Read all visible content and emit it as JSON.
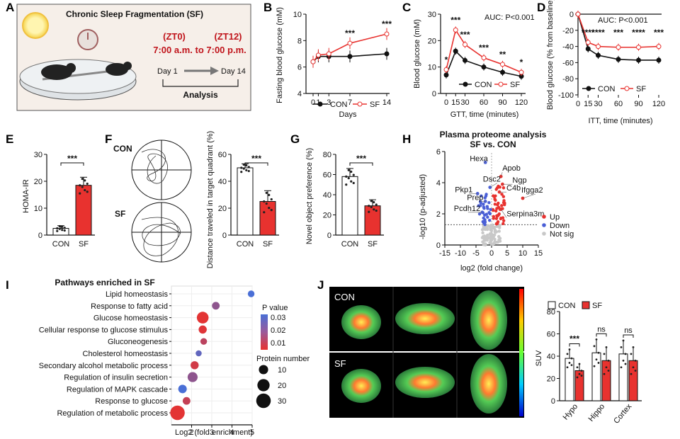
{
  "panel_labels": [
    "A",
    "B",
    "C",
    "D",
    "E",
    "F",
    "G",
    "H",
    "I",
    "J"
  ],
  "panelA": {
    "title": "Chronic Sleep Fragmentation (SF)",
    "zt0": "(ZT0)",
    "zt12": "(ZT12)",
    "time_range": "7:00 a.m.  to  7:00 p.m.",
    "day1": "Day 1",
    "day14": "Day 14",
    "analysis": "Analysis"
  },
  "legend": {
    "con": "CON",
    "sf": "SF"
  },
  "colors": {
    "con": "#111111",
    "sf": "#e8322f",
    "up": "#e8322f",
    "down": "#4a5fd6",
    "notsig": "#c8c8c8"
  },
  "chart_data": [
    {
      "id": "B",
      "type": "line",
      "ylabel": "Fasting blood glucose (mM)",
      "xlabel": "Days",
      "x": [
        0,
        1,
        3,
        7,
        14
      ],
      "ylim": [
        4,
        10
      ],
      "yticks": [
        4,
        6,
        8,
        10
      ],
      "series": [
        {
          "name": "CON",
          "values": [
            6.4,
            6.8,
            6.8,
            6.8,
            7.0
          ]
        },
        {
          "name": "SF",
          "values": [
            6.4,
            6.9,
            7.0,
            7.8,
            8.5
          ]
        }
      ],
      "sig": [
        {
          "x": 7,
          "text": "***"
        },
        {
          "x": 14,
          "text": "***"
        }
      ]
    },
    {
      "id": "C",
      "type": "line",
      "ylabel": "Blood glucose (mM)",
      "xlabel": "GTT, time (minutes)",
      "x": [
        0,
        15,
        30,
        60,
        90,
        120
      ],
      "ylim": [
        0,
        30
      ],
      "yticks": [
        0,
        10,
        20,
        30
      ],
      "annotation": "AUC: P<0.001",
      "series": [
        {
          "name": "CON",
          "values": [
            7,
            16,
            12.5,
            10,
            8,
            6.5
          ]
        },
        {
          "name": "SF",
          "values": [
            9,
            24,
            18.5,
            13.5,
            11,
            8
          ]
        }
      ],
      "sig": [
        {
          "x": 0,
          "text": "*"
        },
        {
          "x": 15,
          "text": "***"
        },
        {
          "x": 30,
          "text": "***"
        },
        {
          "x": 60,
          "text": "***"
        },
        {
          "x": 90,
          "text": "**"
        },
        {
          "x": 120,
          "text": "*"
        }
      ]
    },
    {
      "id": "D",
      "type": "line",
      "ylabel": "Blood glucose (% from baseline)",
      "xlabel": "ITT, time (minutes)",
      "x": [
        0,
        15,
        30,
        60,
        90,
        120
      ],
      "ylim": [
        -100,
        0
      ],
      "yticks": [
        -100,
        -80,
        -60,
        -40,
        -20,
        0
      ],
      "annotation": "AUC: P<0.001",
      "series": [
        {
          "name": "CON",
          "values": [
            0,
            -43,
            -51,
            -56,
            -57,
            -57
          ]
        },
        {
          "name": "SF",
          "values": [
            0,
            -35,
            -40,
            -41,
            -41,
            -40
          ]
        }
      ],
      "sig": [
        {
          "x": 15,
          "text": "****"
        },
        {
          "x": 30,
          "text": "****"
        },
        {
          "x": 60,
          "text": "***"
        },
        {
          "x": 90,
          "text": "****"
        },
        {
          "x": 120,
          "text": "***"
        }
      ]
    },
    {
      "id": "E",
      "type": "bar",
      "ylabel": "HOMA-IR",
      "categories": [
        "CON",
        "SF"
      ],
      "values": [
        2.5,
        18.5
      ],
      "errors": [
        1,
        3
      ],
      "ylim": [
        0,
        30
      ],
      "yticks": [
        0,
        10,
        20,
        30
      ],
      "sig": "***"
    },
    {
      "id": "F",
      "type": "bar",
      "ylabel": "Distance traveled in target quadrant (%)",
      "categories": [
        "CON",
        "SF"
      ],
      "values": [
        50,
        25
      ],
      "errors": [
        3,
        8
      ],
      "ylim": [
        0,
        60
      ],
      "yticks": [
        0,
        20,
        40,
        60
      ],
      "sig": "***",
      "track_labels": [
        "CON",
        "SF"
      ]
    },
    {
      "id": "G",
      "type": "bar",
      "ylabel": "Novel object preference (%)",
      "categories": [
        "CON",
        "SF"
      ],
      "values": [
        58,
        29
      ],
      "errors": [
        8,
        6
      ],
      "ylim": [
        0,
        80
      ],
      "yticks": [
        0,
        20,
        40,
        60,
        80
      ],
      "sig": "***"
    },
    {
      "id": "H",
      "type": "scatter",
      "title": "Plasma proteome analysis",
      "subtitle": "SF vs. CON",
      "xlabel": "log2 (fold change)",
      "ylabel": "-log10 (p-adjusted)",
      "xlim": [
        -15,
        15
      ],
      "ylim": [
        0,
        6
      ],
      "xticks": [
        -15,
        -10,
        -5,
        0,
        5,
        10,
        15
      ],
      "yticks": [
        0,
        2,
        4,
        6
      ],
      "legend": [
        "Up",
        "Down",
        "Not sig"
      ],
      "labels": [
        {
          "name": "Hexa",
          "x": -2,
          "y": 5.3
        },
        {
          "name": "Apob",
          "x": 3,
          "y": 4.4
        },
        {
          "name": "Ngp",
          "x": 3.5,
          "y": 3.9
        },
        {
          "name": "Dsc2",
          "x": -0.5,
          "y": 3.7
        },
        {
          "name": "Ifgga2",
          "x": 10,
          "y": 3.0
        },
        {
          "name": "C4b",
          "x": 2.5,
          "y": 3.4
        },
        {
          "name": "Pkp1",
          "x": -4.5,
          "y": 3.3
        },
        {
          "name": "Prep",
          "x": -2,
          "y": 2.8
        },
        {
          "name": "Pcdh12",
          "x": -3,
          "y": 2.1
        },
        {
          "name": "Serpina3m",
          "x": 3,
          "y": 2.3
        }
      ]
    },
    {
      "id": "I",
      "type": "scatter",
      "title": "Pathways enriched in SF",
      "xlabel": "Log2 (fold enrichment)",
      "xlim": [
        1,
        5
      ],
      "xticks": [
        2,
        3,
        4,
        5
      ],
      "colorbar": {
        "label": "P value",
        "ticks": [
          "0.03",
          "0.02",
          "0.01"
        ]
      },
      "size_legend": {
        "label": "Protein number",
        "values": [
          10,
          20,
          30
        ]
      },
      "pathways": [
        {
          "name": "Lipid homeostasis",
          "x": 4.95,
          "n": 4,
          "p": 0.035,
          "highlight": false
        },
        {
          "name": "Response to fatty acid",
          "x": 3.2,
          "n": 6,
          "p": 0.02,
          "highlight": false
        },
        {
          "name": "Glucose homeostasis",
          "x": 2.55,
          "n": 18,
          "p": 0.001,
          "highlight": true
        },
        {
          "name": "Cellular response to glucose stimulus",
          "x": 2.55,
          "n": 7,
          "p": 0.002,
          "highlight": true
        },
        {
          "name": "Gluconeogenesis",
          "x": 2.6,
          "n": 4,
          "p": 0.01,
          "highlight": true
        },
        {
          "name": "Cholesterol homeostasis",
          "x": 2.35,
          "n": 3,
          "p": 0.03,
          "highlight": false
        },
        {
          "name": "Secondary alcohol metabolic process",
          "x": 2.15,
          "n": 7,
          "p": 0.005,
          "highlight": false
        },
        {
          "name": "Regulation of insulin secretion",
          "x": 2.05,
          "n": 12,
          "p": 0.02,
          "highlight": true
        },
        {
          "name": "Regulation of MAPK cascade",
          "x": 1.55,
          "n": 8,
          "p": 0.035,
          "highlight": false
        },
        {
          "name": "Response to glucose",
          "x": 1.75,
          "n": 6,
          "p": 0.008,
          "highlight": true
        },
        {
          "name": "Regulation of metabolic process",
          "x": 1.3,
          "n": 30,
          "p": 0.001,
          "highlight": false
        }
      ]
    },
    {
      "id": "J",
      "type": "bar",
      "ylabel": "SUV",
      "categories": [
        "Hypo",
        "Hippo",
        "Cortex"
      ],
      "series": [
        {
          "name": "CON",
          "values": [
            38,
            43,
            42
          ],
          "errors": [
            8,
            12,
            12
          ]
        },
        {
          "name": "SF",
          "values": [
            27,
            36,
            36
          ],
          "errors": [
            6,
            12,
            12
          ]
        }
      ],
      "ylim": [
        0,
        80
      ],
      "yticks": [
        0,
        20,
        40,
        60,
        80
      ],
      "sig": [
        "***",
        "ns",
        "ns"
      ],
      "image_labels": [
        "CON",
        "SF"
      ]
    }
  ]
}
